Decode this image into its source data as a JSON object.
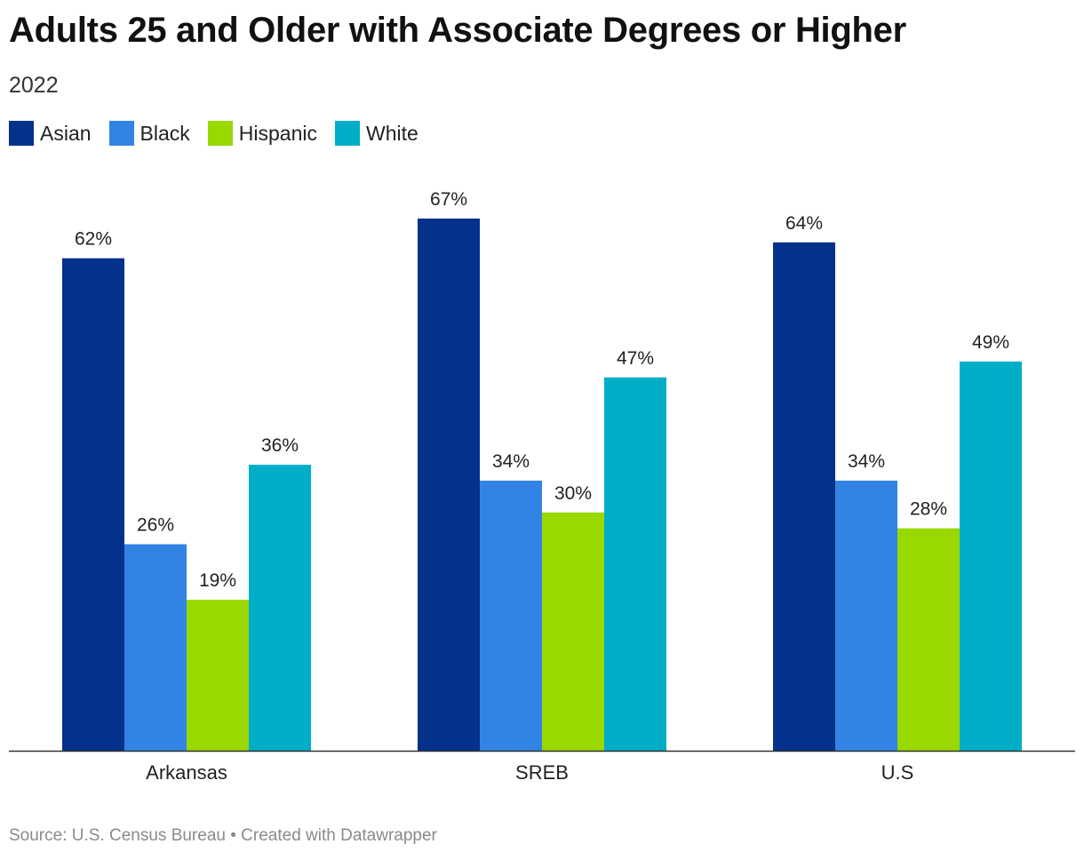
{
  "header": {
    "title": "Adults 25 and Older with Associate Degrees or Higher",
    "subtitle": "2022"
  },
  "chart_data": {
    "type": "bar",
    "title": "Adults 25 and Older with Associate Degrees or Higher",
    "subtitle": "2022",
    "xlabel": "",
    "ylabel": "",
    "categories": [
      "Arkansas",
      "SREB",
      "U.S"
    ],
    "series": [
      {
        "name": "Asian",
        "color": "#04318b",
        "values": [
          62,
          67,
          64
        ]
      },
      {
        "name": "Black",
        "color": "#3184e4",
        "values": [
          26,
          34,
          34
        ]
      },
      {
        "name": "Hispanic",
        "color": "#99d801",
        "values": [
          19,
          30,
          28
        ]
      },
      {
        "name": "White",
        "color": "#00aec8",
        "values": [
          36,
          47,
          49
        ]
      }
    ],
    "value_suffix": "%",
    "ylim": [
      0,
      67
    ],
    "grid": false,
    "legend_position": "top-left"
  },
  "footer": {
    "source": "Source: U.S. Census Bureau • Created with Datawrapper"
  }
}
